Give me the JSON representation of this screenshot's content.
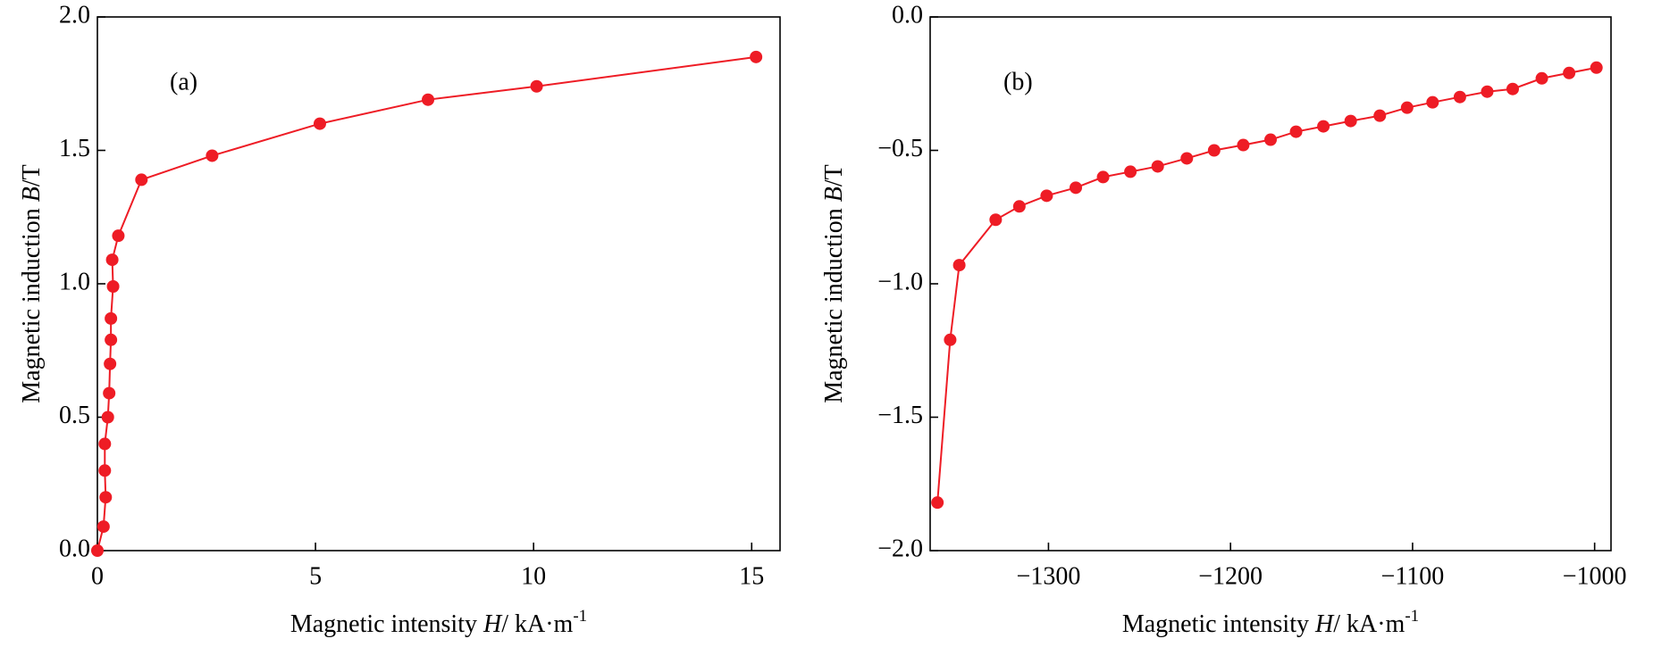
{
  "chart_data": [
    {
      "type": "line",
      "annotation": "(a)",
      "xlabel": {
        "pre": "Magnetic intensity ",
        "var": "H",
        "post": "/ kA·m",
        "sup": "-1"
      },
      "ylabel": {
        "pre": "Magnetic induction ",
        "var": "B",
        "post": "/T"
      },
      "xlim": [
        0,
        15.65
      ],
      "ylim": [
        0,
        2
      ],
      "xticks": [
        0,
        5,
        10,
        15
      ],
      "yticks": [
        {
          "value": 0,
          "label": "0.0"
        },
        {
          "value": 0.5,
          "label": "0.5"
        },
        {
          "value": 1,
          "label": "1.0"
        },
        {
          "value": 1.5,
          "label": "1.5"
        },
        {
          "value": 2,
          "label": "2.0"
        }
      ],
      "series": [
        {
          "color": "#ee1c25",
          "x": [
            0,
            0.14,
            0.19,
            0.17,
            0.17,
            0.24,
            0.27,
            0.29,
            0.31,
            0.31,
            0.36,
            0.34,
            0.48,
            1.01,
            2.63,
            5.1,
            7.58,
            10.07,
            15.1
          ],
          "values": [
            0,
            0.09,
            0.2,
            0.3,
            0.4,
            0.5,
            0.59,
            0.7,
            0.79,
            0.87,
            0.99,
            1.09,
            1.18,
            1.39,
            1.48,
            1.6,
            1.69,
            1.74,
            1.85
          ]
        }
      ]
    },
    {
      "type": "line",
      "annotation": "(b)",
      "xlabel": {
        "pre": "Magnetic intensity ",
        "var": "H",
        "post": "/ kA·m",
        "sup": "-1"
      },
      "ylabel": {
        "pre": "Magnetic induction ",
        "var": "B",
        "post": "/T"
      },
      "xlim": [
        -1365,
        -991
      ],
      "ylim": [
        -2,
        0
      ],
      "xticks": [
        {
          "value": -1300,
          "label": "−1300"
        },
        {
          "value": -1200,
          "label": "−1200"
        },
        {
          "value": -1100,
          "label": "−1100"
        },
        {
          "value": -1000,
          "label": "−1000"
        }
      ],
      "yticks": [
        {
          "value": -2,
          "label": "−2.0"
        },
        {
          "value": -1.5,
          "label": "−1.5"
        },
        {
          "value": -1,
          "label": "−1.0"
        },
        {
          "value": -0.5,
          "label": "−0.5"
        },
        {
          "value": 0,
          "label": "0.0"
        }
      ],
      "series": [
        {
          "color": "#ee1c25",
          "x": [
            -1361,
            -1354,
            -1349,
            -1329,
            -1316,
            -1301,
            -1285,
            -1270,
            -1255,
            -1240,
            -1224,
            -1209,
            -1193,
            -1178,
            -1164,
            -1149,
            -1134,
            -1118,
            -1103,
            -1089,
            -1074,
            -1059,
            -1045,
            -1029,
            -1014,
            -999
          ],
          "values": [
            -1.82,
            -1.21,
            -0.93,
            -0.76,
            -0.71,
            -0.67,
            -0.64,
            -0.6,
            -0.58,
            -0.56,
            -0.53,
            -0.5,
            -0.48,
            -0.46,
            -0.43,
            -0.41,
            -0.39,
            -0.37,
            -0.34,
            -0.32,
            -0.3,
            -0.28,
            -0.27,
            -0.23,
            -0.21,
            -0.19
          ]
        }
      ]
    }
  ]
}
